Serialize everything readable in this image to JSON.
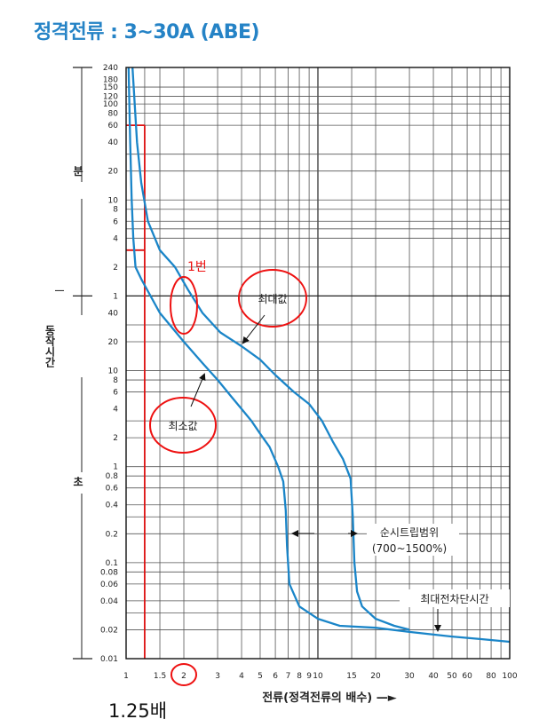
{
  "page_title": "정격전류 : 3~30A (ABE)",
  "chart_data": {
    "type": "line",
    "title": "정격전류 : 3~30A (ABE)",
    "xlabel": "전류(정격전류의  배수)  —►",
    "ylabel_segments": [
      "분",
      "동작시간",
      "초"
    ],
    "x_scale": "log",
    "xlim": [
      1,
      100
    ],
    "x_ticks": [
      {
        "label": "1",
        "value": 1
      },
      {
        "label": "1.5",
        "value": 1.5
      },
      {
        "label": "2",
        "value": 2
      },
      {
        "label": "3",
        "value": 3
      },
      {
        "label": "4",
        "value": 4
      },
      {
        "label": "5",
        "value": 5
      },
      {
        "label": "6",
        "value": 6
      },
      {
        "label": "7",
        "value": 7
      },
      {
        "label": "8",
        "value": 8
      },
      {
        "label": "9",
        "value": 9
      },
      {
        "label": "10",
        "value": 10
      },
      {
        "label": "15",
        "value": 15
      },
      {
        "label": "20",
        "value": 20
      },
      {
        "label": "30",
        "value": 30
      },
      {
        "label": "40",
        "value": 40
      },
      {
        "label": "50",
        "value": 50
      },
      {
        "label": "60",
        "value": 60
      },
      {
        "label": "80",
        "value": 80
      },
      {
        "label": "100",
        "value": 100
      }
    ],
    "y_scale": "log (seconds)",
    "ylim_seconds": [
      0.01,
      14400
    ],
    "y_ticks": [
      {
        "label": "240",
        "seconds": 14400
      },
      {
        "label": "180",
        "seconds": 10800
      },
      {
        "label": "150",
        "seconds": 9000
      },
      {
        "label": "120",
        "seconds": 7200
      },
      {
        "label": "100",
        "seconds": 6000
      },
      {
        "label": "80",
        "seconds": 4800
      },
      {
        "label": "60",
        "seconds": 3600
      },
      {
        "label": "40",
        "seconds": 2400
      },
      {
        "label": "20",
        "seconds": 1200
      },
      {
        "label": "10",
        "seconds": 600
      },
      {
        "label": "8",
        "seconds": 480
      },
      {
        "label": "6",
        "seconds": 360
      },
      {
        "label": "4",
        "seconds": 240
      },
      {
        "label": "2",
        "seconds": 120
      },
      {
        "label": "1",
        "seconds": 60
      },
      {
        "label": "40",
        "seconds": 40
      },
      {
        "label": "20",
        "seconds": 20
      },
      {
        "label": "10",
        "seconds": 10
      },
      {
        "label": "8",
        "seconds": 8
      },
      {
        "label": "6",
        "seconds": 6
      },
      {
        "label": "4",
        "seconds": 4
      },
      {
        "label": "2",
        "seconds": 2
      },
      {
        "label": "1",
        "seconds": 1
      },
      {
        "label": "0.8",
        "seconds": 0.8
      },
      {
        "label": "0.6",
        "seconds": 0.6
      },
      {
        "label": "0.4",
        "seconds": 0.4
      },
      {
        "label": "0.2",
        "seconds": 0.2
      },
      {
        "label": "0.1",
        "seconds": 0.1
      },
      {
        "label": "0.08",
        "seconds": 0.08
      },
      {
        "label": "0.06",
        "seconds": 0.06
      },
      {
        "label": "0.04",
        "seconds": 0.04
      },
      {
        "label": "0.02",
        "seconds": 0.02
      },
      {
        "label": "0.01",
        "seconds": 0.01
      }
    ],
    "minor_y_gridlines_seconds": [
      9000,
      7200,
      6000,
      4800,
      3600,
      1800,
      1200,
      600,
      480,
      360,
      300,
      240,
      120,
      60,
      30,
      20,
      10,
      8,
      6,
      3,
      2,
      1,
      0.8,
      0.6,
      0.4,
      0.3,
      0.2,
      0.1,
      0.08,
      0.06,
      0.04,
      0.03,
      0.02
    ],
    "minor_x_gridlines": [
      1.25,
      1.5,
      2,
      3,
      4,
      5,
      6,
      7,
      8,
      9,
      10,
      15,
      20,
      30,
      40,
      50,
      60,
      70,
      80,
      90
    ],
    "series": [
      {
        "name": "최대값",
        "color": "#1a85c8",
        "points": [
          [
            1.08,
            14400
          ],
          [
            1.14,
            2400
          ],
          [
            1.2,
            900
          ],
          [
            1.3,
            360
          ],
          [
            1.5,
            180
          ],
          [
            1.8,
            120
          ],
          [
            2.1,
            70
          ],
          [
            2.5,
            40
          ],
          [
            3.1,
            25
          ],
          [
            4,
            18
          ],
          [
            5,
            13
          ],
          [
            6,
            9
          ],
          [
            7.5,
            6
          ],
          [
            9,
            4.5
          ],
          [
            10.5,
            3
          ],
          [
            12,
            1.8
          ],
          [
            13.5,
            1.2
          ],
          [
            14.8,
            0.75
          ],
          [
            15.2,
            0.3
          ],
          [
            15.5,
            0.1
          ],
          [
            16,
            0.05
          ],
          [
            17,
            0.035
          ],
          [
            20,
            0.026
          ],
          [
            25,
            0.022
          ],
          [
            30,
            0.02
          ]
        ]
      },
      {
        "name": "최소값",
        "color": "#1a85c8",
        "points": [
          [
            1.03,
            14400
          ],
          [
            1.05,
            2400
          ],
          [
            1.07,
            600
          ],
          [
            1.09,
            240
          ],
          [
            1.12,
            120
          ],
          [
            1.2,
            90
          ],
          [
            1.5,
            40
          ],
          [
            2,
            20
          ],
          [
            2.5,
            12
          ],
          [
            3,
            8
          ],
          [
            3.5,
            5.5
          ],
          [
            4,
            4
          ],
          [
            4.5,
            3
          ],
          [
            5,
            2.2
          ],
          [
            5.6,
            1.6
          ],
          [
            6.2,
            1.0
          ],
          [
            6.6,
            0.7
          ],
          [
            6.8,
            0.35
          ],
          [
            6.9,
            0.15
          ],
          [
            7.1,
            0.06
          ],
          [
            8,
            0.035
          ],
          [
            10,
            0.026
          ],
          [
            13,
            0.022
          ],
          [
            20,
            0.021
          ],
          [
            30,
            0.019
          ],
          [
            50,
            0.017
          ],
          [
            70,
            0.016
          ],
          [
            100,
            0.015
          ]
        ]
      }
    ],
    "reference_lines": [
      {
        "name": "rated-multiple-line",
        "color": "#dd1111",
        "x": 1.25,
        "from_seconds": 0.01,
        "to_seconds": 3600
      },
      {
        "name": "60-minute-line",
        "color": "#dd1111",
        "from_x": 1,
        "to_x": 1.25,
        "seconds": 3600
      },
      {
        "name": "3-minute-line",
        "color": "#dd1111",
        "from_x": 1,
        "to_x": 1.25,
        "seconds": 180
      }
    ],
    "annotations": {
      "max_label": "최대값",
      "min_label": "최소값",
      "instant_trip_label": "순시트립범위",
      "instant_trip_range": "(700~1500%)",
      "max_break_label": "최대전차단시간",
      "point_label": "1번"
    }
  },
  "note": "1.25배"
}
